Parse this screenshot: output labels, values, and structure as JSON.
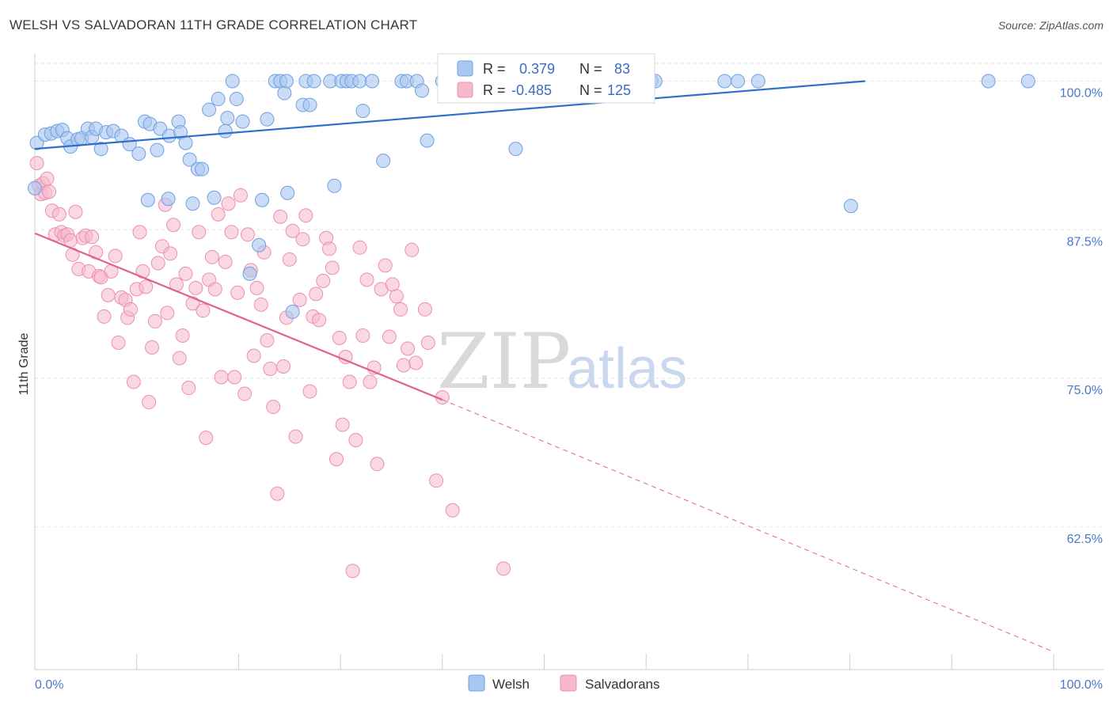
{
  "header": {
    "title": "WELSH VS SALVADORAN 11TH GRADE CORRELATION CHART",
    "source": "Source: ZipAtlas.com"
  },
  "watermark": {
    "zip": "ZIP",
    "atlas": "atlas"
  },
  "legend_box": {
    "rows": [
      {
        "r_label": "R =",
        "r_value": "0.379",
        "n_label": "N =",
        "n_value": "83"
      },
      {
        "r_label": "R =",
        "r_value": "-0.485",
        "n_label": "N =",
        "n_value": "125"
      }
    ]
  },
  "bottom_legend": {
    "welsh": "Welsh",
    "salvadorans": "Salvadorans"
  },
  "colors": {
    "welsh_fill": "#a9c7f0",
    "welsh_stroke": "#6fa0e0",
    "welsh_line": "#2f6fcc",
    "salv_fill": "#f5b8cc",
    "salv_stroke": "#ec8fb0",
    "salv_line": "#e0628f",
    "grid": "#e3e3e3",
    "axis": "#cfcfcf"
  },
  "chart_data": {
    "type": "scatter",
    "title": "WELSH VS SALVADORAN 11TH GRADE CORRELATION CHART",
    "xlabel": "",
    "ylabel": "11th Grade",
    "xlim": [
      0,
      100
    ],
    "ylim": [
      50.5,
      101.5
    ],
    "x_tick_labels": [
      "0.0%",
      "100.0%"
    ],
    "y_ticks": [
      62.5,
      75.0,
      87.5,
      100.0
    ],
    "y_tick_labels": [
      "62.5%",
      "75.0%",
      "87.5%",
      "100.0%"
    ],
    "grid": true,
    "legend": "top-center",
    "series": [
      {
        "name": "Welsh",
        "R": 0.379,
        "N": 83,
        "trend": {
          "x": [
            0,
            81.5
          ],
          "y": [
            94.3,
            100.0
          ]
        },
        "points": [
          [
            0.0,
            91.0
          ],
          [
            0.2,
            94.8
          ],
          [
            1.0,
            95.5
          ],
          [
            1.6,
            95.6
          ],
          [
            2.2,
            95.8
          ],
          [
            2.7,
            95.9
          ],
          [
            3.2,
            95.2
          ],
          [
            3.5,
            94.5
          ],
          [
            4.2,
            95.1
          ],
          [
            4.6,
            95.2
          ],
          [
            5.2,
            96.0
          ],
          [
            5.6,
            95.3
          ],
          [
            6.0,
            96.0
          ],
          [
            6.5,
            94.3
          ],
          [
            7.0,
            95.7
          ],
          [
            7.7,
            95.8
          ],
          [
            8.5,
            95.4
          ],
          [
            9.3,
            94.7
          ],
          [
            10.2,
            93.9
          ],
          [
            10.8,
            96.6
          ],
          [
            11.3,
            96.4
          ],
          [
            11.1,
            90.0
          ],
          [
            12.0,
            94.2
          ],
          [
            12.3,
            96.0
          ],
          [
            13.2,
            95.4
          ],
          [
            14.1,
            96.6
          ],
          [
            14.3,
            95.7
          ],
          [
            13.1,
            90.1
          ],
          [
            14.8,
            94.8
          ],
          [
            15.2,
            93.4
          ],
          [
            15.5,
            89.7
          ],
          [
            16.0,
            92.6
          ],
          [
            16.4,
            92.6
          ],
          [
            17.1,
            97.6
          ],
          [
            17.6,
            90.2
          ],
          [
            18.0,
            98.5
          ],
          [
            18.7,
            95.8
          ],
          [
            18.9,
            96.9
          ],
          [
            19.4,
            100.0
          ],
          [
            19.8,
            98.5
          ],
          [
            20.4,
            96.6
          ],
          [
            21.1,
            83.8
          ],
          [
            22.0,
            86.2
          ],
          [
            22.3,
            90.0
          ],
          [
            22.8,
            96.8
          ],
          [
            23.6,
            100.0
          ],
          [
            24.1,
            100.0
          ],
          [
            24.5,
            99.0
          ],
          [
            24.7,
            100.0
          ],
          [
            24.8,
            90.6
          ],
          [
            25.3,
            80.6
          ],
          [
            26.3,
            98.0
          ],
          [
            26.6,
            100.0
          ],
          [
            27.0,
            98.0
          ],
          [
            27.4,
            100.0
          ],
          [
            29.0,
            100.0
          ],
          [
            29.4,
            91.2
          ],
          [
            30.1,
            100.0
          ],
          [
            30.6,
            100.0
          ],
          [
            31.1,
            100.0
          ],
          [
            31.9,
            100.0
          ],
          [
            32.2,
            97.5
          ],
          [
            33.1,
            100.0
          ],
          [
            34.2,
            93.3
          ],
          [
            36.0,
            100.0
          ],
          [
            36.5,
            100.0
          ],
          [
            37.5,
            100.0
          ],
          [
            38.0,
            99.2
          ],
          [
            38.5,
            95.0
          ],
          [
            40.0,
            100.0
          ],
          [
            40.5,
            100.0
          ],
          [
            47.2,
            94.3
          ],
          [
            52.0,
            100.0
          ],
          [
            58.5,
            100.0
          ],
          [
            60.0,
            100.0
          ],
          [
            60.5,
            100.0
          ],
          [
            60.9,
            100.0
          ],
          [
            67.7,
            100.0
          ],
          [
            69.0,
            100.0
          ],
          [
            71.0,
            100.0
          ],
          [
            80.1,
            89.5
          ],
          [
            93.6,
            100.0
          ],
          [
            97.5,
            100.0
          ]
        ]
      },
      {
        "name": "Salvadorans",
        "R": -0.485,
        "N": 125,
        "trend": {
          "x": [
            0,
            40.0
          ],
          "y": [
            87.2,
            73.2
          ]
        },
        "trend_extension": {
          "x": [
            40.0,
            100.0
          ],
          "y": [
            73.2,
            52.0
          ]
        },
        "points": [
          [
            0.2,
            93.1
          ],
          [
            0.4,
            91.2
          ],
          [
            0.6,
            90.5
          ],
          [
            0.8,
            91.4
          ],
          [
            1.0,
            90.6
          ],
          [
            1.2,
            91.8
          ],
          [
            1.4,
            90.7
          ],
          [
            1.7,
            89.1
          ],
          [
            2.0,
            87.1
          ],
          [
            2.4,
            88.8
          ],
          [
            2.6,
            87.3
          ],
          [
            2.9,
            87.0
          ],
          [
            3.2,
            87.1
          ],
          [
            3.5,
            86.6
          ],
          [
            3.7,
            85.4
          ],
          [
            4.0,
            89.0
          ],
          [
            4.3,
            84.2
          ],
          [
            4.7,
            86.8
          ],
          [
            5.0,
            87.0
          ],
          [
            5.3,
            84.0
          ],
          [
            5.6,
            86.9
          ],
          [
            6.0,
            85.6
          ],
          [
            6.3,
            83.6
          ],
          [
            6.5,
            83.5
          ],
          [
            6.8,
            80.2
          ],
          [
            7.2,
            82.0
          ],
          [
            7.5,
            84.0
          ],
          [
            7.9,
            85.3
          ],
          [
            8.2,
            78.0
          ],
          [
            8.5,
            81.8
          ],
          [
            8.9,
            81.6
          ],
          [
            9.1,
            80.1
          ],
          [
            9.4,
            80.8
          ],
          [
            9.7,
            74.7
          ],
          [
            10.0,
            82.5
          ],
          [
            10.3,
            87.3
          ],
          [
            10.6,
            84.0
          ],
          [
            10.9,
            82.7
          ],
          [
            11.2,
            73.0
          ],
          [
            11.5,
            77.6
          ],
          [
            11.8,
            79.8
          ],
          [
            12.1,
            84.7
          ],
          [
            12.5,
            86.1
          ],
          [
            12.8,
            89.6
          ],
          [
            13.0,
            80.5
          ],
          [
            13.3,
            85.5
          ],
          [
            13.6,
            87.9
          ],
          [
            13.9,
            82.9
          ],
          [
            14.2,
            76.7
          ],
          [
            14.5,
            78.6
          ],
          [
            14.8,
            83.8
          ],
          [
            15.1,
            74.2
          ],
          [
            15.5,
            81.3
          ],
          [
            15.8,
            82.6
          ],
          [
            16.1,
            87.3
          ],
          [
            16.5,
            80.7
          ],
          [
            16.8,
            70.0
          ],
          [
            17.1,
            83.3
          ],
          [
            17.4,
            85.2
          ],
          [
            17.7,
            82.5
          ],
          [
            18.0,
            88.8
          ],
          [
            18.3,
            75.1
          ],
          [
            18.7,
            84.8
          ],
          [
            19.0,
            89.7
          ],
          [
            19.3,
            87.3
          ],
          [
            19.6,
            75.1
          ],
          [
            19.9,
            82.2
          ],
          [
            20.2,
            90.4
          ],
          [
            20.6,
            73.7
          ],
          [
            20.9,
            87.1
          ],
          [
            21.2,
            84.1
          ],
          [
            21.5,
            76.9
          ],
          [
            21.8,
            82.6
          ],
          [
            22.2,
            81.2
          ],
          [
            22.5,
            85.6
          ],
          [
            22.8,
            78.2
          ],
          [
            23.1,
            75.8
          ],
          [
            23.4,
            72.6
          ],
          [
            23.8,
            65.3
          ],
          [
            24.1,
            88.6
          ],
          [
            24.4,
            76.0
          ],
          [
            24.7,
            80.1
          ],
          [
            25.0,
            85.0
          ],
          [
            25.3,
            87.4
          ],
          [
            25.6,
            70.1
          ],
          [
            26.0,
            81.6
          ],
          [
            26.3,
            86.7
          ],
          [
            26.6,
            88.7
          ],
          [
            27.0,
            73.9
          ],
          [
            27.3,
            80.2
          ],
          [
            27.6,
            82.1
          ],
          [
            27.9,
            79.9
          ],
          [
            28.3,
            83.2
          ],
          [
            28.6,
            86.8
          ],
          [
            28.9,
            85.9
          ],
          [
            29.2,
            84.3
          ],
          [
            29.6,
            68.2
          ],
          [
            29.9,
            78.4
          ],
          [
            30.2,
            71.1
          ],
          [
            30.5,
            76.8
          ],
          [
            30.9,
            74.7
          ],
          [
            31.2,
            58.8
          ],
          [
            31.5,
            69.8
          ],
          [
            31.9,
            86.0
          ],
          [
            32.2,
            78.6
          ],
          [
            32.6,
            83.3
          ],
          [
            32.9,
            74.7
          ],
          [
            33.3,
            75.9
          ],
          [
            33.6,
            67.8
          ],
          [
            34.0,
            82.5
          ],
          [
            34.4,
            84.5
          ],
          [
            34.8,
            78.5
          ],
          [
            35.1,
            82.9
          ],
          [
            35.5,
            81.9
          ],
          [
            35.9,
            80.8
          ],
          [
            36.2,
            76.1
          ],
          [
            36.6,
            77.5
          ],
          [
            37.0,
            85.8
          ],
          [
            37.4,
            76.3
          ],
          [
            38.3,
            80.8
          ],
          [
            38.6,
            78.0
          ],
          [
            39.4,
            66.4
          ],
          [
            40.0,
            73.4
          ],
          [
            41.0,
            63.9
          ],
          [
            46.0,
            59.0
          ]
        ]
      }
    ]
  }
}
